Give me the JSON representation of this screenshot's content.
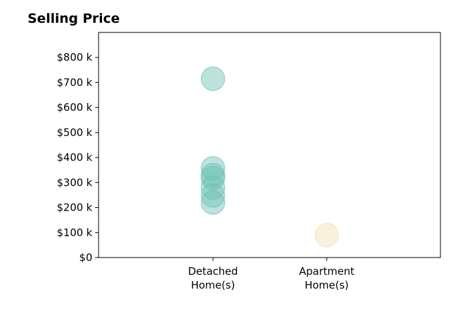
{
  "chart_data": {
    "type": "scatter",
    "title": "Selling Price",
    "xlabel": "",
    "ylabel": "",
    "categories": [
      "Detached\nHome(s)",
      "Apartment\nHome(s)"
    ],
    "ylim": [
      0,
      900000
    ],
    "yticks": [
      0,
      100000,
      200000,
      300000,
      400000,
      500000,
      600000,
      700000,
      800000
    ],
    "ytick_labels": [
      "$0",
      "$100 k",
      "$200 k",
      "$300 k",
      "$400 k",
      "$500 k",
      "$600 k",
      "$700 k",
      "$800 k"
    ],
    "grid": false,
    "series": [
      {
        "category": "Detached\nHome(s)",
        "color": "#6fc0b3",
        "values": [
          715000,
          357000,
          330000,
          318000,
          280000,
          248000,
          220000
        ]
      },
      {
        "category": "Apartment\nHome(s)",
        "color": "#f5deb3",
        "values": [
          90000
        ]
      }
    ]
  }
}
